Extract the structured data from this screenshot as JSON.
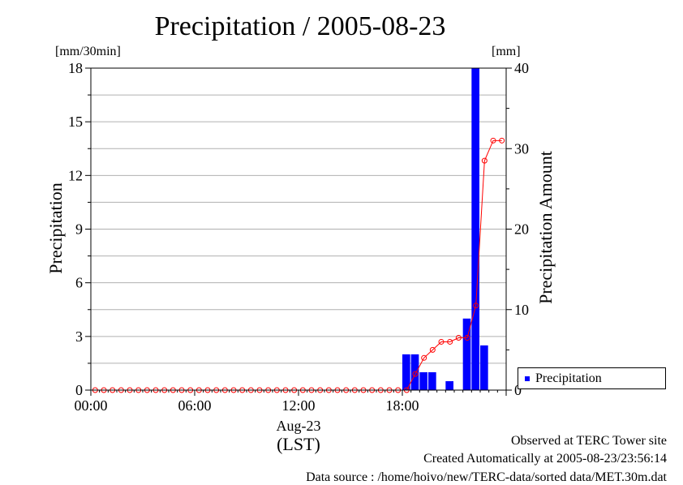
{
  "page_title": "Precipitation / 2005-08-23",
  "left_unit": "[mm/30min]",
  "right_unit": "[mm]",
  "footer": {
    "line1": "Observed at TERC Tower site",
    "line2": "Created Automatically at 2005-08-23/23:56:14",
    "line3": "Data source : /home/hoivo/new/TERC-data/sorted  data/MET.30m.dat"
  },
  "colors": {
    "bar": "#0000ff",
    "cumulative_line": "#ff0000",
    "grid": "#b0b0b0"
  },
  "chart_data": {
    "type": "bar",
    "title": "Precipitation / 2005-08-23",
    "xlabel": "Aug-23\n(LST)",
    "date_label": "Aug-23",
    "time_zone_label": "(LST)",
    "ylabel": "Precipitation",
    "y2label": "Precipitation Amount",
    "ylim": [
      0,
      18
    ],
    "y2lim": [
      0,
      40
    ],
    "yticks": [
      0,
      3,
      6,
      9,
      12,
      15,
      18
    ],
    "y2ticks": [
      0,
      10,
      20,
      30,
      40
    ],
    "xticks": [
      "00:00",
      "06:00",
      "12:00",
      "18:00"
    ],
    "grid": true,
    "legend_position": "bottom-right",
    "x": [
      "00:00",
      "00:30",
      "01:00",
      "01:30",
      "02:00",
      "02:30",
      "03:00",
      "03:30",
      "04:00",
      "04:30",
      "05:00",
      "05:30",
      "06:00",
      "06:30",
      "07:00",
      "07:30",
      "08:00",
      "08:30",
      "09:00",
      "09:30",
      "10:00",
      "10:30",
      "11:00",
      "11:30",
      "12:00",
      "12:30",
      "13:00",
      "13:30",
      "14:00",
      "14:30",
      "15:00",
      "15:30",
      "16:00",
      "16:30",
      "17:00",
      "17:30",
      "18:00",
      "18:30",
      "19:00",
      "19:30",
      "20:00",
      "20:30",
      "21:00",
      "21:30",
      "22:00",
      "22:30",
      "23:00",
      "23:30"
    ],
    "series": [
      {
        "name": "Precipitation",
        "type": "bar",
        "axis": "left",
        "values": [
          0,
          0,
          0,
          0,
          0,
          0,
          0,
          0,
          0,
          0,
          0,
          0,
          0,
          0,
          0,
          0,
          0,
          0,
          0,
          0,
          0,
          0,
          0,
          0,
          0,
          0,
          0,
          0,
          0,
          0,
          0,
          0,
          0,
          0,
          0,
          0,
          2,
          2,
          1,
          1,
          0,
          0.5,
          0,
          4,
          18,
          2.5,
          0,
          0
        ]
      },
      {
        "type": "line",
        "axis": "right",
        "values": [
          0,
          0,
          0,
          0,
          0,
          0,
          0,
          0,
          0,
          0,
          0,
          0,
          0,
          0,
          0,
          0,
          0,
          0,
          0,
          0,
          0,
          0,
          0,
          0,
          0,
          0,
          0,
          0,
          0,
          0,
          0,
          0,
          0,
          0,
          0,
          0,
          0,
          2,
          4,
          5,
          6,
          6,
          6.5,
          6.5,
          10.5,
          28.5,
          31,
          31
        ]
      }
    ]
  }
}
